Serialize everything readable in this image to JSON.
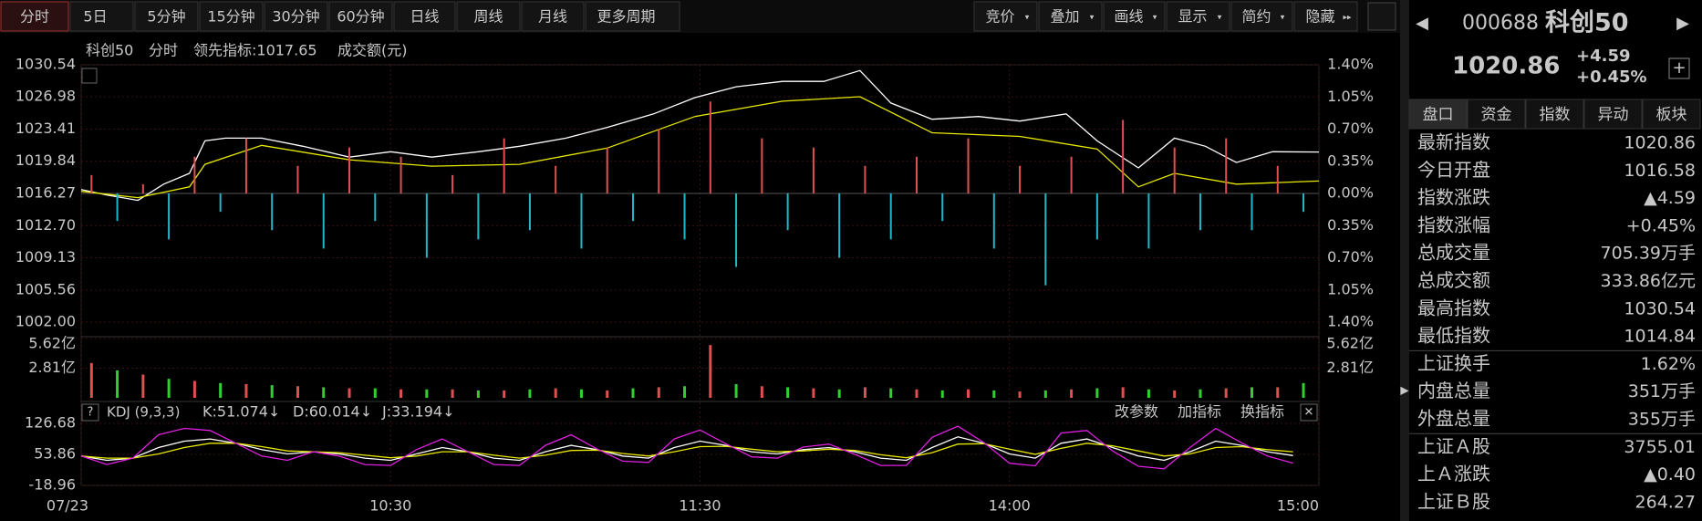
{
  "toolbar": {
    "periods": [
      "分时",
      "5日",
      "5分钟",
      "15分钟",
      "30分钟",
      "60分钟",
      "日线",
      "周线",
      "月线",
      "更多周期"
    ],
    "tools": [
      "竞价",
      "叠加",
      "画线",
      "显示",
      "简约",
      "隐藏"
    ]
  },
  "chart_data": [
    {
      "type": "line",
      "title": "科创50",
      "subtitle": "分时",
      "indicator_label": "领先指标:1017.65",
      "amount_label": "成交额(元)",
      "xlim": [
        0,
        240
      ],
      "xticks": [
        {
          "value": 0,
          "label": "07/23"
        },
        {
          "value": 60,
          "label": "10:30"
        },
        {
          "value": 120,
          "label": "11:30"
        },
        {
          "value": 180,
          "label": "14:00"
        },
        {
          "value": 240,
          "label": "15:00"
        }
      ],
      "ylim": [
        1002.0,
        1030.54
      ],
      "yticks": [
        {
          "value": 1030.54,
          "label": "1030.54"
        },
        {
          "value": 1026.98,
          "label": "1026.98"
        },
        {
          "value": 1023.41,
          "label": "1023.41"
        },
        {
          "value": 1019.84,
          "label": "1019.84"
        },
        {
          "value": 1016.27,
          "label": "1016.27"
        },
        {
          "value": 1012.7,
          "label": "1012.70"
        },
        {
          "value": 1009.13,
          "label": "1009.13"
        },
        {
          "value": 1005.56,
          "label": "1005.56"
        },
        {
          "value": 1002.0,
          "label": "1002.00"
        }
      ],
      "y2lim": [
        -1.4,
        1.4
      ],
      "y2ticks": [
        {
          "value": 1.4,
          "label": "1.40%"
        },
        {
          "value": 1.05,
          "label": "1.05%"
        },
        {
          "value": 0.7,
          "label": "0.70%"
        },
        {
          "value": 0.35,
          "label": "0.35%"
        },
        {
          "value": 0,
          "label": "0.00%"
        },
        {
          "value": -0.35,
          "label": "0.35%"
        },
        {
          "value": -0.7,
          "label": "0.70%"
        },
        {
          "value": -1.05,
          "label": "1.05%"
        },
        {
          "value": -1.4,
          "label": "1.40%"
        }
      ],
      "series": [
        {
          "color": "#ffffff",
          "x": [
            0,
            5,
            11,
            16,
            21,
            24,
            28,
            35,
            43,
            52,
            60,
            68,
            77,
            85,
            94,
            102,
            111,
            119,
            127,
            136,
            144,
            151,
            157,
            165,
            174,
            182,
            191,
            197,
            205,
            212,
            218,
            224,
            231,
            240
          ],
          "values": [
            1016.7,
            1016.1,
            1015.5,
            1017.3,
            1018.5,
            1022.1,
            1022.4,
            1022.4,
            1021.5,
            1020.3,
            1020.9,
            1020.3,
            1020.9,
            1021.5,
            1022.4,
            1023.6,
            1025.1,
            1026.9,
            1028.1,
            1028.7,
            1028.7,
            1029.9,
            1026.3,
            1024.5,
            1024.8,
            1024.3,
            1025.1,
            1022.1,
            1019.1,
            1022.4,
            1021.5,
            1019.7,
            1020.9,
            1020.86
          ]
        },
        {
          "color": "#e8e800",
          "x": [
            0,
            11,
            21,
            24,
            35,
            52,
            68,
            85,
            102,
            119,
            136,
            151,
            165,
            182,
            197,
            205,
            212,
            224,
            240
          ],
          "values": [
            1016.5,
            1015.8,
            1017.0,
            1019.5,
            1021.6,
            1020.0,
            1019.3,
            1019.5,
            1021.3,
            1024.8,
            1026.5,
            1027.0,
            1023.0,
            1022.6,
            1021.2,
            1017.0,
            1018.5,
            1017.3,
            1017.65
          ]
        },
        {
          "type": "bar",
          "axis": "y2",
          "up_color": "#e05050",
          "down_color": "#20b8c8",
          "x": [
            2,
            7,
            12,
            17,
            22,
            27,
            32,
            37,
            42,
            47,
            52,
            57,
            62,
            67,
            72,
            77,
            82,
            87,
            92,
            97,
            102,
            107,
            112,
            117,
            122,
            127,
            132,
            137,
            142,
            147,
            152,
            157,
            162,
            167,
            172,
            177,
            182,
            187,
            192,
            197,
            202,
            207,
            212,
            217,
            222,
            227,
            232,
            237
          ],
          "values": [
            0.2,
            -0.3,
            0.1,
            -0.5,
            0.4,
            -0.2,
            0.6,
            -0.4,
            0.3,
            -0.6,
            0.5,
            -0.3,
            0.4,
            -0.7,
            0.2,
            -0.5,
            0.6,
            -0.4,
            0.3,
            -0.6,
            0.5,
            -0.3,
            0.7,
            -0.5,
            1.0,
            -0.8,
            0.6,
            -0.4,
            0.5,
            -0.7,
            0.3,
            -0.5,
            0.4,
            -0.3,
            0.6,
            -0.6,
            0.3,
            -1.0,
            0.4,
            -0.5,
            0.8,
            -0.6,
            0.5,
            -0.4,
            0.6,
            -0.4,
            0.3,
            -0.2
          ]
        }
      ]
    },
    {
      "type": "bar",
      "xlim": [
        0,
        240
      ],
      "ylim": [
        0,
        5.62
      ],
      "yticks": [
        {
          "value": 2.81,
          "label": "2.81亿"
        },
        {
          "value": 5.62,
          "label": "5.62亿"
        }
      ],
      "up_color": "#e05050",
      "down_color": "#30d030",
      "x": [
        2,
        7,
        12,
        17,
        22,
        27,
        32,
        37,
        42,
        47,
        52,
        57,
        62,
        67,
        72,
        77,
        82,
        87,
        92,
        97,
        102,
        107,
        112,
        117,
        122,
        127,
        132,
        137,
        142,
        147,
        152,
        157,
        162,
        167,
        172,
        177,
        182,
        187,
        192,
        197,
        202,
        207,
        212,
        217,
        222,
        227,
        232,
        237
      ],
      "values": [
        3.3,
        2.6,
        2.2,
        1.8,
        1.6,
        1.4,
        1.3,
        1.2,
        1.1,
        1.0,
        0.9,
        0.9,
        0.8,
        0.8,
        0.8,
        0.7,
        0.7,
        0.8,
        0.9,
        0.8,
        0.7,
        0.9,
        1.0,
        1.1,
        5.0,
        1.3,
        1.1,
        1.0,
        0.9,
        0.8,
        1.0,
        0.9,
        0.8,
        0.7,
        0.8,
        0.7,
        0.6,
        0.7,
        0.8,
        0.9,
        1.0,
        0.8,
        0.7,
        0.8,
        0.9,
        1.0,
        1.0,
        1.4
      ]
    },
    {
      "type": "kdj",
      "title": "KDJ (9,3,3)",
      "menu": [
        "改参数",
        "加指标",
        "换指标"
      ],
      "xlim": [
        0,
        240
      ],
      "ylim": [
        -18.96,
        126.68
      ],
      "yticks": [
        {
          "value": 126.68,
          "label": "126.68"
        },
        {
          "value": 53.86,
          "label": "53.86"
        },
        {
          "value": -18.96,
          "label": "-18.96"
        }
      ],
      "x": [
        0,
        5,
        10,
        15,
        20,
        25,
        30,
        35,
        40,
        45,
        50,
        55,
        60,
        65,
        70,
        75,
        80,
        85,
        90,
        95,
        100,
        105,
        110,
        115,
        120,
        125,
        130,
        135,
        140,
        145,
        150,
        155,
        160,
        165,
        170,
        175,
        180,
        185,
        190,
        195,
        200,
        205,
        210,
        215,
        220,
        225,
        230,
        235
      ],
      "series": [
        {
          "name": "K:51.074↓",
          "color": "#ffffff",
          "values": [
            50,
            40,
            45,
            70,
            85,
            90,
            80,
            65,
            55,
            60,
            55,
            45,
            40,
            55,
            70,
            60,
            45,
            40,
            60,
            75,
            65,
            50,
            45,
            70,
            85,
            75,
            60,
            55,
            65,
            70,
            60,
            45,
            40,
            70,
            95,
            80,
            55,
            45,
            80,
            90,
            70,
            50,
            40,
            60,
            85,
            75,
            60,
            51.074
          ]
        },
        {
          "name": "D:60.014↓",
          "color": "#e8e800",
          "values": [
            50,
            45,
            45,
            55,
            70,
            80,
            80,
            72,
            62,
            60,
            58,
            52,
            46,
            50,
            60,
            60,
            52,
            45,
            52,
            63,
            64,
            56,
            50,
            60,
            72,
            73,
            66,
            60,
            62,
            66,
            63,
            53,
            46,
            58,
            78,
            79,
            66,
            54,
            68,
            80,
            74,
            62,
            50,
            55,
            70,
            72,
            65,
            60.014
          ]
        },
        {
          "name": "J:33.194↓",
          "color": "#e020e0",
          "values": [
            50,
            30,
            45,
            100,
            115,
            110,
            80,
            50,
            40,
            60,
            50,
            30,
            28,
            65,
            90,
            60,
            30,
            28,
            75,
            100,
            67,
            38,
            35,
            90,
            111,
            79,
            48,
            45,
            71,
            78,
            54,
            28,
            28,
            94,
            120,
            82,
            33,
            27,
            104,
            110,
            62,
            26,
            20,
            70,
            115,
            81,
            50,
            33.194
          ]
        }
      ]
    }
  ],
  "quote": {
    "code": "000688",
    "name": "科创50",
    "price": "1020.86",
    "change": "+4.59",
    "change_pct": "+0.45%",
    "tabs": [
      "盘口",
      "资金",
      "指数",
      "异动",
      "板块"
    ],
    "rows": [
      {
        "label": "最新指数",
        "value": "1020.86",
        "color": "#ff4040"
      },
      {
        "label": "今日开盘",
        "value": "1016.58",
        "color": "#ff4040"
      },
      {
        "label": "指数涨跌",
        "value": "▲4.59",
        "color": "#ff4040"
      },
      {
        "label": "指数涨幅",
        "value": "+0.45%",
        "color": "#ff4040"
      },
      {
        "label": "总成交量",
        "value": "705.39万手",
        "color": "#ffffff"
      },
      {
        "label": "总成交额",
        "value": "333.86亿元",
        "color": "#20d8e8"
      },
      {
        "label": "最高指数",
        "value": "1030.54",
        "color": "#ff4040"
      },
      {
        "label": "最低指数",
        "value": "1014.84",
        "color": "#30e030"
      },
      {
        "label": "上证换手",
        "value": "1.62%",
        "color": "#ffffff"
      },
      {
        "label": "内盘总量",
        "value": "351万手",
        "color": "#30e030"
      },
      {
        "label": "外盘总量",
        "value": "355万手",
        "color": "#ff4040"
      },
      {
        "label": "上证Ａ股",
        "value": "3755.01",
        "color": "#ff4040"
      },
      {
        "label": "上Ａ涨跌",
        "value": "▲0.40",
        "color": "#ff4040"
      },
      {
        "label": "上证Ｂ股",
        "value": "264.27",
        "color": "#ff4040"
      }
    ]
  }
}
